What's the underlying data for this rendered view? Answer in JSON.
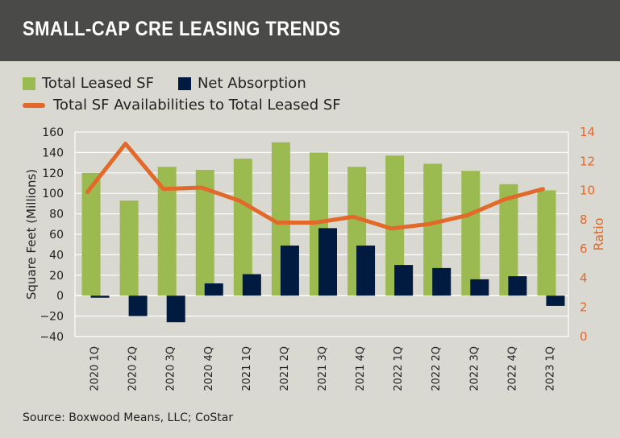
{
  "title": "SMALL-CAP CRE LEASING TRENDS",
  "source": "Source: Boxwood Means, LLC; CoStar",
  "colors": {
    "leased": "#9bbb50",
    "absorption": "#001a40",
    "ratio": "#e2692a",
    "header": "#4a4a49"
  },
  "chart_data": {
    "type": "bar",
    "title": "SMALL-CAP CRE LEASING TRENDS",
    "categories": [
      "2020 1Q",
      "2020 2Q",
      "2020 3Q",
      "2020 4Q",
      "2021 1Q",
      "2021 2Q",
      "2021 3Q",
      "2021 4Q",
      "2022 1Q",
      "2022 2Q",
      "2022 3Q",
      "2022 4Q",
      "2023 1Q"
    ],
    "series": [
      {
        "name": "Total Leased SF",
        "type": "bar",
        "axis": "left",
        "values": [
          120,
          93,
          126,
          123,
          134,
          150,
          140,
          126,
          137,
          129,
          122,
          109,
          103
        ]
      },
      {
        "name": "Net Absorption",
        "type": "bar",
        "axis": "left",
        "values": [
          -2,
          -20,
          -26,
          12,
          21,
          49,
          66,
          49,
          30,
          27,
          16,
          19,
          -10
        ]
      },
      {
        "name": "Total SF Availabilities to Total Leased SF",
        "type": "line",
        "axis": "right",
        "values": [
          9.9,
          13.2,
          10.1,
          10.2,
          9.3,
          7.8,
          7.8,
          8.2,
          7.4,
          7.7,
          8.3,
          9.4,
          10.1
        ]
      }
    ],
    "ylabel": "Square Feet (Millions)",
    "ylim": [
      -40,
      160
    ],
    "yticks": [
      -40,
      -20,
      0,
      20,
      40,
      60,
      80,
      100,
      120,
      140,
      160
    ],
    "y2label": "Ratio",
    "y2lim": [
      0,
      14
    ],
    "y2ticks": [
      0,
      2,
      4,
      6,
      8,
      10,
      12,
      14
    ],
    "grid": true,
    "legend": "top-left"
  }
}
